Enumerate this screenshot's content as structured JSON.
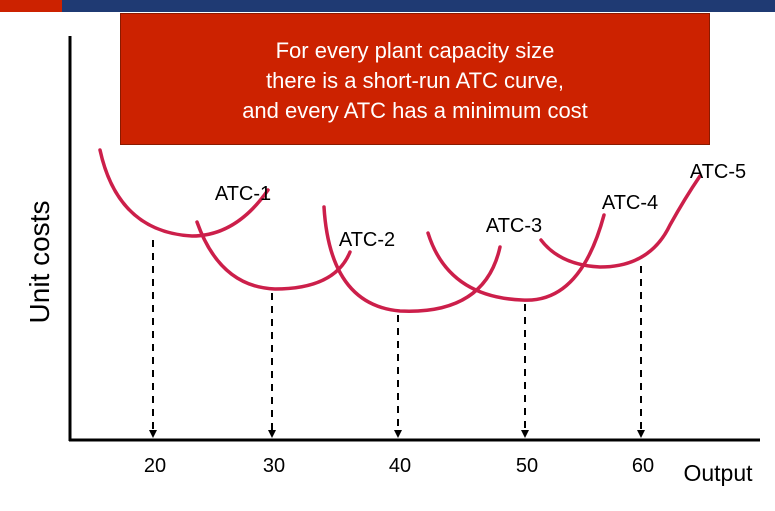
{
  "colors": {
    "header_bar": "#1f3a73",
    "header_accent": "#cc2200",
    "callout_bg": "#cc2200",
    "callout_text": "#ffffff",
    "curve": "#cc1f4a",
    "axis": "#000000"
  },
  "callout": {
    "lines": [
      "For every plant capacity size",
      "there is a short-run ATC curve,",
      "and every ATC has a minimum cost"
    ]
  },
  "chart_data": {
    "type": "line",
    "xlabel": "Output",
    "ylabel": "Unit costs",
    "x_ticks": [
      "20",
      "30",
      "40",
      "50",
      "60"
    ],
    "x": [
      20,
      30,
      40,
      50,
      60
    ],
    "series": [
      {
        "name": "ATC-1",
        "min_output": 20
      },
      {
        "name": "ATC-2",
        "min_output": 30
      },
      {
        "name": "ATC-3",
        "min_output": 40
      },
      {
        "name": "ATC-4",
        "min_output": 50
      },
      {
        "name": "ATC-5",
        "min_output": 60
      }
    ],
    "grid": false,
    "legend": "none"
  }
}
